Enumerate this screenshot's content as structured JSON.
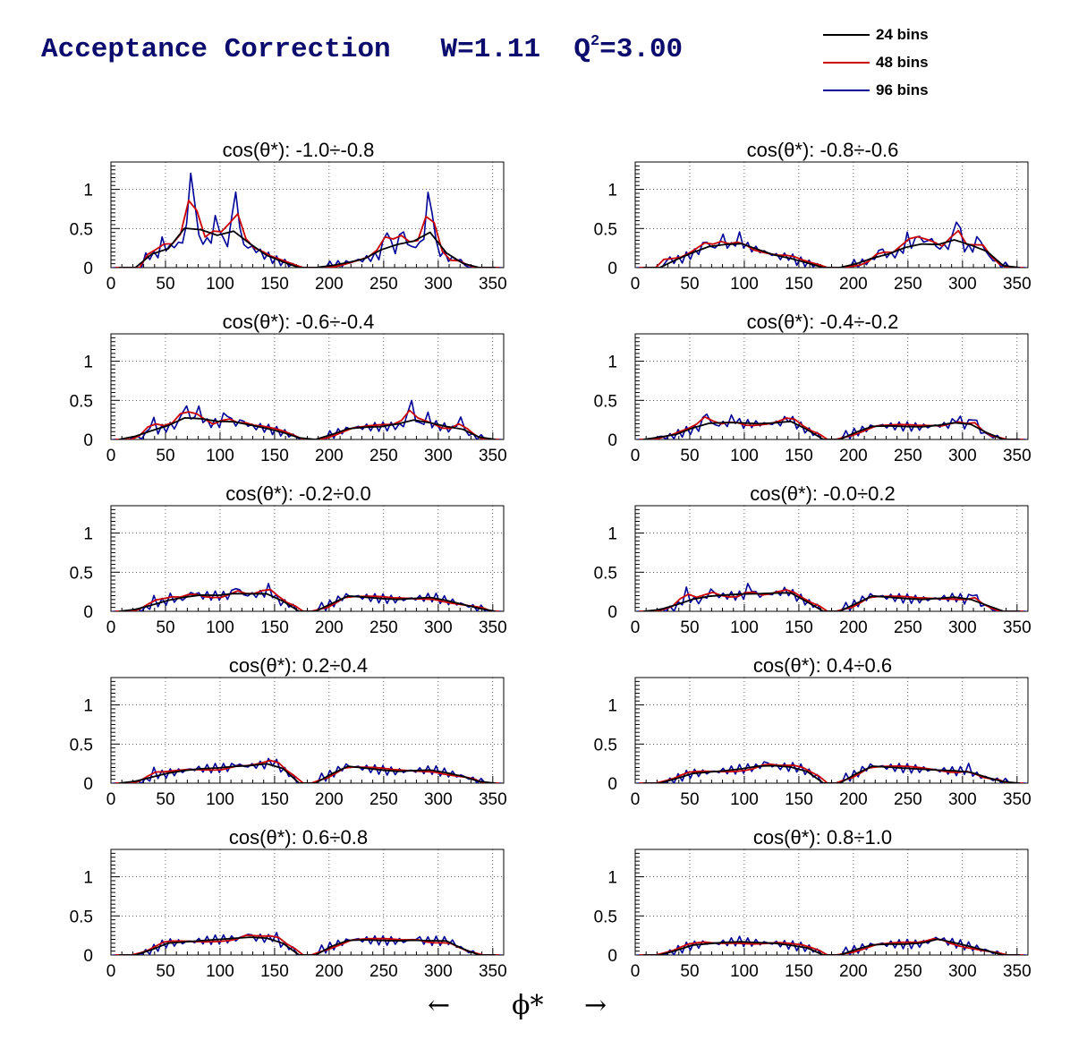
{
  "header": {
    "title_main": "Acceptance Correction",
    "title_w": "W=1.11",
    "title_q": "Q",
    "title_q_exp": "2",
    "title_q_val": "=3.00"
  },
  "legend": {
    "items": [
      {
        "label": "24 bins",
        "color": "#000000"
      },
      {
        "label": "48 bins",
        "color": "#cc0000"
      },
      {
        "label": "96 bins",
        "color": "#000099"
      }
    ]
  },
  "xaxis": {
    "left_arrow": "←",
    "label": "ϕ*",
    "right_arrow": "→"
  },
  "chart_data": [
    {
      "type": "line",
      "title": "cos(θ*): -1.0÷-0.8",
      "xlim": [
        0,
        360
      ],
      "ylim": [
        0,
        1.35
      ],
      "xticks": [
        0,
        50,
        100,
        150,
        200,
        250,
        300,
        350
      ],
      "yticks": [
        0,
        0.5,
        1
      ],
      "ytick_labels": [
        "0",
        "0.5",
        "1"
      ],
      "grid": true,
      "coverage": [
        [
          30,
          170
        ],
        [
          195,
          330
        ]
      ],
      "hump": [
        [
          50,
          0.15
        ],
        [
          70,
          0.38
        ],
        [
          100,
          0.3
        ],
        [
          120,
          0.3
        ],
        [
          150,
          0.1
        ],
        [
          170,
          0.02
        ],
        [
          200,
          0.02
        ],
        [
          230,
          0.1
        ],
        [
          260,
          0.2
        ],
        [
          290,
          0.32
        ],
        [
          310,
          0.12
        ],
        [
          325,
          0.02
        ]
      ],
      "spikes": [
        [
          48,
          0.35
        ],
        [
          58,
          0.3
        ],
        [
          74,
          1.25
        ],
        [
          97,
          0.65
        ],
        [
          114,
          1.0
        ],
        [
          130,
          0.25
        ],
        [
          145,
          0.1
        ],
        [
          253,
          0.5
        ],
        [
          267,
          0.5
        ],
        [
          292,
          1.0
        ],
        [
          318,
          0.12
        ]
      ]
    },
    {
      "type": "line",
      "title": "cos(θ*): -0.8÷-0.6",
      "xlim": [
        0,
        360
      ],
      "ylim": [
        0,
        1.35
      ],
      "xticks": [
        0,
        50,
        100,
        150,
        200,
        250,
        300,
        350
      ],
      "yticks": [
        0,
        0.5,
        1
      ],
      "ytick_labels": [
        "0",
        "0.5",
        "1"
      ],
      "grid": true,
      "coverage": [
        [
          25,
          170
        ],
        [
          195,
          340
        ]
      ],
      "hump": [
        [
          40,
          0.1
        ],
        [
          60,
          0.22
        ],
        [
          100,
          0.28
        ],
        [
          130,
          0.15
        ],
        [
          160,
          0.05
        ],
        [
          175,
          0.01
        ],
        [
          205,
          0.05
        ],
        [
          240,
          0.18
        ],
        [
          290,
          0.28
        ],
        [
          320,
          0.2
        ],
        [
          335,
          0.02
        ]
      ],
      "spikes": [
        [
          65,
          0.35
        ],
        [
          80,
          0.4
        ],
        [
          95,
          0.4
        ],
        [
          140,
          0.15
        ],
        [
          225,
          0.25
        ],
        [
          250,
          0.4
        ],
        [
          260,
          0.45
        ],
        [
          270,
          0.4
        ],
        [
          295,
          0.65
        ],
        [
          315,
          0.4
        ]
      ]
    },
    {
      "type": "line",
      "title": "cos(θ*): -0.6÷-0.4",
      "xlim": [
        0,
        360
      ],
      "ylim": [
        0,
        1.35
      ],
      "xticks": [
        0,
        50,
        100,
        150,
        200,
        250,
        300,
        350
      ],
      "yticks": [
        0,
        0.5,
        1
      ],
      "ytick_labels": [
        "0",
        "0.5",
        "1"
      ],
      "grid": true,
      "coverage": [
        [
          20,
          175
        ],
        [
          195,
          340
        ]
      ],
      "hump": [
        [
          30,
          0.03
        ],
        [
          50,
          0.15
        ],
        [
          70,
          0.22
        ],
        [
          110,
          0.2
        ],
        [
          140,
          0.15
        ],
        [
          160,
          0.08
        ],
        [
          175,
          0.01
        ],
        [
          200,
          0.05
        ],
        [
          220,
          0.15
        ],
        [
          260,
          0.17
        ],
        [
          300,
          0.18
        ],
        [
          325,
          0.08
        ],
        [
          340,
          0.01
        ]
      ],
      "spikes": [
        [
          38,
          0.25
        ],
        [
          68,
          0.45
        ],
        [
          80,
          0.4
        ],
        [
          106,
          0.35
        ],
        [
          120,
          0.25
        ],
        [
          275,
          0.5
        ],
        [
          290,
          0.3
        ],
        [
          320,
          0.28
        ]
      ]
    },
    {
      "type": "line",
      "title": "cos(θ*): -0.4÷-0.2",
      "xlim": [
        0,
        360
      ],
      "ylim": [
        0,
        1.35
      ],
      "xticks": [
        0,
        50,
        100,
        150,
        200,
        250,
        300,
        350
      ],
      "yticks": [
        0,
        0.5,
        1
      ],
      "ytick_labels": [
        "0",
        "0.5",
        "1"
      ],
      "grid": true,
      "coverage": [
        [
          20,
          170
        ],
        [
          190,
          335
        ]
      ],
      "hump": [
        [
          30,
          0.03
        ],
        [
          50,
          0.12
        ],
        [
          80,
          0.2
        ],
        [
          120,
          0.2
        ],
        [
          145,
          0.22
        ],
        [
          160,
          0.1
        ],
        [
          180,
          0.01
        ],
        [
          200,
          0.08
        ],
        [
          220,
          0.18
        ],
        [
          260,
          0.16
        ],
        [
          300,
          0.2
        ],
        [
          325,
          0.05
        ],
        [
          335,
          0.01
        ]
      ],
      "spikes": [
        [
          65,
          0.35
        ],
        [
          90,
          0.28
        ],
        [
          140,
          0.28
        ],
        [
          295,
          0.28
        ],
        [
          310,
          0.3
        ]
      ]
    },
    {
      "type": "line",
      "title": "cos(θ*): -0.2÷0.0",
      "xlim": [
        0,
        360
      ],
      "ylim": [
        0,
        1.35
      ],
      "xticks": [
        0,
        50,
        100,
        150,
        200,
        250,
        300,
        350
      ],
      "yticks": [
        0,
        0.5,
        1
      ],
      "ytick_labels": [
        "0",
        "0.5",
        "1"
      ],
      "grid": true,
      "coverage": [
        [
          20,
          170
        ],
        [
          190,
          345
        ]
      ],
      "hump": [
        [
          30,
          0.02
        ],
        [
          50,
          0.12
        ],
        [
          80,
          0.2
        ],
        [
          110,
          0.2
        ],
        [
          140,
          0.22
        ],
        [
          160,
          0.1
        ],
        [
          180,
          0.01
        ],
        [
          200,
          0.08
        ],
        [
          215,
          0.2
        ],
        [
          260,
          0.15
        ],
        [
          295,
          0.18
        ],
        [
          325,
          0.08
        ],
        [
          345,
          0.01
        ]
      ],
      "spikes": [
        [
          40,
          0.15
        ],
        [
          55,
          0.18
        ],
        [
          75,
          0.25
        ],
        [
          115,
          0.32
        ],
        [
          145,
          0.3
        ]
      ]
    },
    {
      "type": "line",
      "title": "cos(θ*): -0.0÷0.2",
      "xlim": [
        0,
        360
      ],
      "ylim": [
        0,
        1.35
      ],
      "xticks": [
        0,
        50,
        100,
        150,
        200,
        250,
        300,
        350
      ],
      "yticks": [
        0,
        0.5,
        1
      ],
      "ytick_labels": [
        "0",
        "0.5",
        "1"
      ],
      "grid": true,
      "coverage": [
        [
          20,
          170
        ],
        [
          190,
          330
        ]
      ],
      "hump": [
        [
          30,
          0.02
        ],
        [
          50,
          0.12
        ],
        [
          80,
          0.2
        ],
        [
          110,
          0.2
        ],
        [
          140,
          0.25
        ],
        [
          160,
          0.1
        ],
        [
          180,
          0.01
        ],
        [
          200,
          0.08
        ],
        [
          215,
          0.2
        ],
        [
          260,
          0.15
        ],
        [
          295,
          0.18
        ],
        [
          325,
          0.05
        ],
        [
          330,
          0.01
        ]
      ],
      "spikes": [
        [
          47,
          0.25
        ],
        [
          70,
          0.28
        ],
        [
          105,
          0.33
        ],
        [
          138,
          0.26
        ],
        [
          310,
          0.25
        ]
      ]
    },
    {
      "type": "line",
      "title": "cos(θ*): 0.2÷0.4",
      "xlim": [
        0,
        360
      ],
      "ylim": [
        0,
        1.35
      ],
      "xticks": [
        0,
        50,
        100,
        150,
        200,
        250,
        300,
        350
      ],
      "yticks": [
        0,
        0.5,
        1
      ],
      "ytick_labels": [
        "0",
        "0.5",
        "1"
      ],
      "grid": true,
      "coverage": [
        [
          20,
          170
        ],
        [
          190,
          340
        ]
      ],
      "hump": [
        [
          30,
          0.02
        ],
        [
          50,
          0.12
        ],
        [
          75,
          0.18
        ],
        [
          110,
          0.2
        ],
        [
          150,
          0.25
        ],
        [
          165,
          0.1
        ],
        [
          180,
          0.01
        ],
        [
          200,
          0.1
        ],
        [
          215,
          0.22
        ],
        [
          260,
          0.15
        ],
        [
          295,
          0.17
        ],
        [
          325,
          0.08
        ],
        [
          340,
          0.01
        ]
      ],
      "spikes": [
        [
          40,
          0.15
        ],
        [
          115,
          0.25
        ],
        [
          148,
          0.28
        ]
      ]
    },
    {
      "type": "line",
      "title": "cos(θ*): 0.4÷0.6",
      "xlim": [
        0,
        360
      ],
      "ylim": [
        0,
        1.35
      ],
      "xticks": [
        0,
        50,
        100,
        150,
        200,
        250,
        300,
        350
      ],
      "yticks": [
        0,
        0.5,
        1
      ],
      "ytick_labels": [
        "0",
        "0.5",
        "1"
      ],
      "grid": true,
      "coverage": [
        [
          25,
          170
        ],
        [
          190,
          340
        ]
      ],
      "hump": [
        [
          30,
          0.02
        ],
        [
          50,
          0.12
        ],
        [
          90,
          0.17
        ],
        [
          120,
          0.22
        ],
        [
          150,
          0.2
        ],
        [
          165,
          0.1
        ],
        [
          180,
          0.01
        ],
        [
          200,
          0.1
        ],
        [
          215,
          0.22
        ],
        [
          260,
          0.18
        ],
        [
          300,
          0.15
        ],
        [
          325,
          0.06
        ],
        [
          340,
          0.01
        ]
      ],
      "spikes": [
        [
          120,
          0.27
        ],
        [
          305,
          0.2
        ]
      ]
    },
    {
      "type": "line",
      "title": "cos(θ*): 0.6÷0.8",
      "xlim": [
        0,
        360
      ],
      "ylim": [
        0,
        1.35
      ],
      "xticks": [
        0,
        50,
        100,
        150,
        200,
        250,
        300,
        350
      ],
      "yticks": [
        0,
        0.5,
        1
      ],
      "ytick_labels": [
        "0",
        "0.5",
        "1"
      ],
      "grid": true,
      "coverage": [
        [
          25,
          170
        ],
        [
          190,
          335
        ]
      ],
      "hump": [
        [
          30,
          0.02
        ],
        [
          50,
          0.15
        ],
        [
          100,
          0.2
        ],
        [
          140,
          0.22
        ],
        [
          160,
          0.12
        ],
        [
          180,
          0.01
        ],
        [
          200,
          0.1
        ],
        [
          220,
          0.2
        ],
        [
          260,
          0.18
        ],
        [
          310,
          0.18
        ],
        [
          325,
          0.06
        ],
        [
          335,
          0.01
        ]
      ],
      "spikes": [
        [
          125,
          0.28
        ],
        [
          150,
          0.25
        ],
        [
          280,
          0.22
        ]
      ]
    },
    {
      "type": "line",
      "title": "cos(θ*): 0.8÷1.0",
      "xlim": [
        0,
        360
      ],
      "ylim": [
        0,
        1.35
      ],
      "xticks": [
        0,
        50,
        100,
        150,
        200,
        250,
        300,
        350
      ],
      "yticks": [
        0,
        0.5,
        1
      ],
      "ytick_labels": [
        "0",
        "0.5",
        "1"
      ],
      "grid": true,
      "coverage": [
        [
          25,
          170
        ],
        [
          190,
          335
        ]
      ],
      "hump": [
        [
          30,
          0.02
        ],
        [
          50,
          0.12
        ],
        [
          90,
          0.17
        ],
        [
          130,
          0.15
        ],
        [
          155,
          0.1
        ],
        [
          180,
          0.01
        ],
        [
          200,
          0.06
        ],
        [
          220,
          0.14
        ],
        [
          260,
          0.14
        ],
        [
          277,
          0.2
        ],
        [
          310,
          0.1
        ],
        [
          335,
          0.01
        ]
      ],
      "spikes": [
        [
          65,
          0.16
        ],
        [
          95,
          0.18
        ],
        [
          277,
          0.22
        ]
      ]
    }
  ]
}
